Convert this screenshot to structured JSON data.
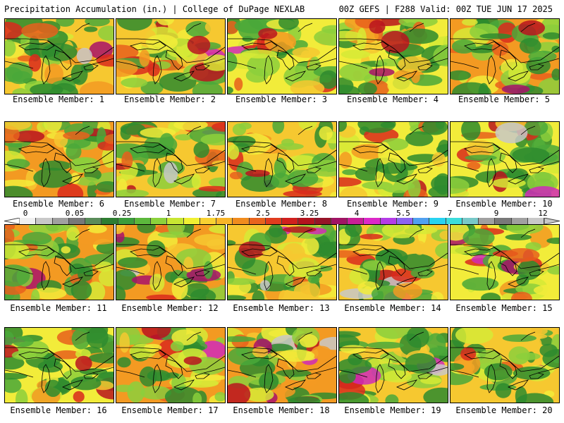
{
  "header": {
    "left": "Precipitation Accumulation (in.) | College of DuPage NEXLAB",
    "right": "00Z GEFS | F288 Valid: 00Z TUE JUN 17 2025"
  },
  "colorbar": {
    "tick_labels": [
      "0",
      "0.05",
      "0.25",
      "1",
      "1.75",
      "2.5",
      "3.25",
      "4",
      "5.5",
      "7",
      "9",
      "12"
    ],
    "colors": [
      "#f0f0f0",
      "#c8c8c8",
      "#a0a0a0",
      "#787878",
      "#5a8c5a",
      "#2e7d32",
      "#3c9c3c",
      "#5cb83c",
      "#8cd23c",
      "#c8e632",
      "#f0f032",
      "#f8d232",
      "#f8b428",
      "#f08c1e",
      "#e8641e",
      "#e03c1e",
      "#d0201e",
      "#b4141e",
      "#961428",
      "#a01464",
      "#c81e96",
      "#dc28c8",
      "#b43ce6",
      "#8c64f0",
      "#50a0f0",
      "#28d2f0",
      "#3cdcdc",
      "#78c8c8",
      "#a0a0a0",
      "#787878",
      "#a0a0a0",
      "#c8c8c8"
    ]
  },
  "panels": [
    {
      "label": "Ensemble Member: 1"
    },
    {
      "label": "Ensemble Member: 2"
    },
    {
      "label": "Ensemble Member: 3"
    },
    {
      "label": "Ensemble Member: 4"
    },
    {
      "label": "Ensemble Member: 5"
    },
    {
      "label": "Ensemble Member: 6"
    },
    {
      "label": "Ensemble Member: 7"
    },
    {
      "label": "Ensemble Member: 8"
    },
    {
      "label": "Ensemble Member: 9"
    },
    {
      "label": "Ensemble Member: 10"
    },
    {
      "label": "Ensemble Member: 11"
    },
    {
      "label": "Ensemble Member: 12"
    },
    {
      "label": "Ensemble Member: 13"
    },
    {
      "label": "Ensemble Member: 14"
    },
    {
      "label": "Ensemble Member: 15"
    },
    {
      "label": "Ensemble Member: 16"
    },
    {
      "label": "Ensemble Member: 17"
    },
    {
      "label": "Ensemble Member: 18"
    },
    {
      "label": "Ensemble Member: 19"
    },
    {
      "label": "Ensemble Member: 20"
    }
  ]
}
